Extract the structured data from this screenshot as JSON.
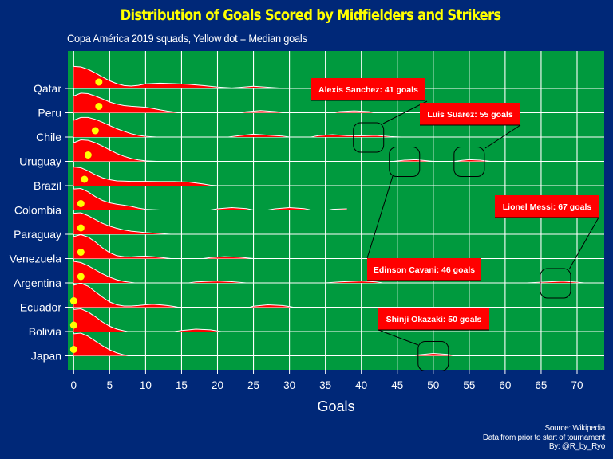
{
  "title": "Distribution of Goals Scored by Midfielders and Strikers",
  "subtitle": "Copa América 2019 squads, Yellow dot = Median goals",
  "caption": [
    "Source: Wikipedia",
    "Data from prior to start of tournament",
    "By: @R_by_Ryo"
  ],
  "colors": {
    "background": "#002878",
    "panel": "#009a3e",
    "grid": "#ffffff",
    "ridge_fill": "#ff0000",
    "ridge_outline": "#ffffff",
    "median_dot": "#ffff00",
    "title": "#ffff00",
    "label_fill": "#ff0000",
    "label_text": "#ffffff",
    "annotation_line": "#000000"
  },
  "chart_data": {
    "type": "ridgeline",
    "title": "Distribution of Goals Scored by Midfielders and Strikers",
    "subtitle": "Copa América 2019 squads, Yellow dot = Median goals",
    "xlabel": "Goals",
    "ylabel": "",
    "xlim": [
      -0.7,
      73.5
    ],
    "x_ticks": [
      0,
      5,
      10,
      15,
      20,
      25,
      30,
      35,
      40,
      45,
      50,
      55,
      60,
      65,
      70
    ],
    "grid": true,
    "legend": "none",
    "categories": [
      "Qatar",
      "Peru",
      "Chile",
      "Uruguay",
      "Brazil",
      "Colombia",
      "Paraguay",
      "Venezuela",
      "Argentina",
      "Ecuador",
      "Bolivia",
      "Japan"
    ],
    "series": [
      {
        "name": "Qatar",
        "median": 3.5,
        "max_extent": 29.5,
        "peak_height": 1.0,
        "density": [
          [
            0,
            0.92
          ],
          [
            1,
            0.9
          ],
          [
            2,
            0.8
          ],
          [
            3,
            0.65
          ],
          [
            4,
            0.48
          ],
          [
            5,
            0.32
          ],
          [
            6,
            0.2
          ],
          [
            7,
            0.12
          ],
          [
            8,
            0.1
          ],
          [
            9,
            0.13
          ],
          [
            10,
            0.19
          ],
          [
            12,
            0.22
          ],
          [
            14,
            0.2
          ],
          [
            16,
            0.17
          ],
          [
            18,
            0.12
          ],
          [
            20,
            0.06
          ],
          [
            22,
            0.02
          ],
          [
            23,
            0.04
          ],
          [
            25,
            0.09
          ],
          [
            27,
            0.05
          ],
          [
            29,
            0.01
          ],
          [
            29.5,
            0
          ]
        ]
      },
      {
        "name": "Peru",
        "median": 3.5,
        "max_extent": 15.0,
        "peak_height": 0.9,
        "density": [
          [
            0,
            0.7
          ],
          [
            1,
            0.82
          ],
          [
            2,
            0.8
          ],
          [
            3,
            0.7
          ],
          [
            4,
            0.58
          ],
          [
            5,
            0.45
          ],
          [
            6,
            0.36
          ],
          [
            7,
            0.3
          ],
          [
            8,
            0.27
          ],
          [
            9,
            0.25
          ],
          [
            10,
            0.23
          ],
          [
            11,
            0.18
          ],
          [
            12,
            0.12
          ],
          [
            13,
            0.07
          ],
          [
            14,
            0.03
          ],
          [
            15,
            0
          ]
        ],
        "secondary": [
          [
            23,
            0
          ],
          [
            24,
            0.04
          ],
          [
            26,
            0.09
          ],
          [
            28,
            0.05
          ],
          [
            29.5,
            0
          ],
          [
            36,
            0
          ],
          [
            37,
            0.05
          ],
          [
            39,
            0.08
          ],
          [
            41,
            0.05
          ],
          [
            42,
            0
          ]
        ]
      },
      {
        "name": "Chile",
        "median": 3.0,
        "max_extent": 11.5,
        "peak_height": 0.9,
        "density": [
          [
            0,
            0.7
          ],
          [
            1,
            0.82
          ],
          [
            2,
            0.82
          ],
          [
            3,
            0.74
          ],
          [
            4,
            0.62
          ],
          [
            5,
            0.48
          ],
          [
            6,
            0.35
          ],
          [
            7,
            0.24
          ],
          [
            8,
            0.14
          ],
          [
            9,
            0.07
          ],
          [
            10,
            0.03
          ],
          [
            11.5,
            0
          ]
        ],
        "secondary": [
          [
            21.5,
            0
          ],
          [
            23,
            0.06
          ],
          [
            25,
            0.12
          ],
          [
            27,
            0.08
          ],
          [
            29,
            0.04
          ],
          [
            30,
            0
          ],
          [
            33,
            0
          ],
          [
            34,
            0.06
          ],
          [
            36,
            0.1
          ],
          [
            38,
            0.06
          ],
          [
            40,
            0.05
          ],
          [
            42,
            0.07
          ],
          [
            44,
            0.02
          ],
          [
            45.5,
            0
          ]
        ]
      },
      {
        "name": "Uruguay",
        "median": 2.0,
        "max_extent": 11.5,
        "peak_height": 0.95,
        "density": [
          [
            0,
            0.78
          ],
          [
            1,
            0.9
          ],
          [
            2,
            0.88
          ],
          [
            3,
            0.78
          ],
          [
            4,
            0.64
          ],
          [
            5,
            0.48
          ],
          [
            6,
            0.33
          ],
          [
            7,
            0.21
          ],
          [
            8,
            0.12
          ],
          [
            9,
            0.06
          ],
          [
            10,
            0.02
          ],
          [
            11.5,
            0
          ]
        ],
        "secondary": [
          [
            44.5,
            0
          ],
          [
            46,
            0.05
          ],
          [
            47.5,
            0.07
          ],
          [
            49,
            0.03
          ],
          [
            50,
            0
          ],
          [
            53,
            0
          ],
          [
            54,
            0.04
          ],
          [
            55,
            0.07
          ],
          [
            56.5,
            0.05
          ],
          [
            58,
            0
          ]
        ]
      },
      {
        "name": "Brazil",
        "median": 1.5,
        "max_extent": 20.0,
        "peak_height": 0.75,
        "density": [
          [
            0,
            0.78
          ],
          [
            1,
            0.75
          ],
          [
            2,
            0.62
          ],
          [
            3,
            0.46
          ],
          [
            4,
            0.33
          ],
          [
            5,
            0.25
          ],
          [
            6,
            0.2
          ],
          [
            7,
            0.19
          ],
          [
            8,
            0.18
          ],
          [
            10,
            0.18
          ],
          [
            12,
            0.17
          ],
          [
            14,
            0.17
          ],
          [
            16,
            0.15
          ],
          [
            18,
            0.07
          ],
          [
            19,
            0.02
          ],
          [
            20,
            0
          ]
        ]
      },
      {
        "name": "Colombia",
        "median": 1.0,
        "max_extent": 12.0,
        "peak_height": 0.95,
        "density": [
          [
            0,
            0.88
          ],
          [
            1,
            0.9
          ],
          [
            2,
            0.76
          ],
          [
            3,
            0.56
          ],
          [
            4,
            0.4
          ],
          [
            5,
            0.3
          ],
          [
            6,
            0.24
          ],
          [
            7,
            0.2
          ],
          [
            8,
            0.15
          ],
          [
            9,
            0.08
          ],
          [
            10,
            0.03
          ],
          [
            12,
            0
          ]
        ],
        "secondary": [
          [
            19,
            0
          ],
          [
            20,
            0.05
          ],
          [
            22,
            0.1
          ],
          [
            24,
            0.06
          ],
          [
            25,
            0
          ],
          [
            27,
            0
          ],
          [
            28,
            0.05
          ],
          [
            30,
            0.1
          ],
          [
            32,
            0.06
          ],
          [
            33,
            0
          ],
          [
            35.5,
            0
          ],
          [
            36,
            0.03
          ],
          [
            38,
            0.05
          ]
        ]
      },
      {
        "name": "Paraguay",
        "median": 1.0,
        "max_extent": 13.5,
        "peak_height": 0.95,
        "density": [
          [
            0,
            0.88
          ],
          [
            1,
            0.9
          ],
          [
            2,
            0.78
          ],
          [
            3,
            0.62
          ],
          [
            4,
            0.46
          ],
          [
            5,
            0.34
          ],
          [
            6,
            0.25
          ],
          [
            7,
            0.18
          ],
          [
            8,
            0.13
          ],
          [
            9,
            0.1
          ],
          [
            10,
            0.07
          ],
          [
            11,
            0.05
          ],
          [
            12,
            0.03
          ],
          [
            13.5,
            0
          ]
        ]
      },
      {
        "name": "Venezuela",
        "median": 1.0,
        "max_extent": 13.5,
        "peak_height": 1.0,
        "density": [
          [
            0,
            0.92
          ],
          [
            1,
            1.0
          ],
          [
            2,
            0.9
          ],
          [
            3,
            0.7
          ],
          [
            4,
            0.45
          ],
          [
            5,
            0.25
          ],
          [
            6,
            0.12
          ],
          [
            7,
            0.08
          ],
          [
            8,
            0.07
          ],
          [
            9,
            0.09
          ],
          [
            10,
            0.1
          ],
          [
            11,
            0.08
          ],
          [
            12,
            0.05
          ],
          [
            13.5,
            0
          ]
        ],
        "secondary": [
          [
            18,
            0
          ],
          [
            19,
            0.04
          ],
          [
            21,
            0.08
          ],
          [
            23,
            0.06
          ],
          [
            24,
            0.03
          ],
          [
            25,
            0
          ]
        ]
      },
      {
        "name": "Argentina",
        "median": 1.0,
        "max_extent": 8.5,
        "peak_height": 0.95,
        "density": [
          [
            0,
            0.9
          ],
          [
            1,
            0.85
          ],
          [
            2,
            0.72
          ],
          [
            3,
            0.55
          ],
          [
            4,
            0.38
          ],
          [
            5,
            0.24
          ],
          [
            6,
            0.13
          ],
          [
            7,
            0.06
          ],
          [
            8.5,
            0
          ]
        ],
        "secondary": [
          [
            16,
            0
          ],
          [
            17,
            0.04
          ],
          [
            20,
            0.08
          ],
          [
            22,
            0.05
          ],
          [
            24,
            0
          ],
          [
            35,
            0
          ],
          [
            37,
            0.04
          ],
          [
            40,
            0.08
          ],
          [
            42,
            0.04
          ],
          [
            43,
            0
          ],
          [
            63,
            0
          ],
          [
            65,
            0.03
          ],
          [
            68,
            0.07
          ],
          [
            70,
            0.03
          ],
          [
            71,
            0
          ]
        ]
      },
      {
        "name": "Ecuador",
        "median": 0,
        "max_extent": 14.5,
        "peak_height": 1.0,
        "density": [
          [
            0,
            0.92
          ],
          [
            1,
            1.0
          ],
          [
            2,
            0.88
          ],
          [
            3,
            0.65
          ],
          [
            4,
            0.42
          ],
          [
            5,
            0.22
          ],
          [
            6,
            0.1
          ],
          [
            7,
            0.05
          ],
          [
            8,
            0.05
          ],
          [
            9,
            0.07
          ],
          [
            10,
            0.1
          ],
          [
            11,
            0.12
          ],
          [
            12,
            0.1
          ],
          [
            13,
            0.07
          ],
          [
            14,
            0.03
          ],
          [
            14.5,
            0
          ]
        ],
        "secondary": [
          [
            24.5,
            0
          ],
          [
            25,
            0.04
          ],
          [
            27,
            0.1
          ],
          [
            29,
            0.07
          ],
          [
            30,
            0.03
          ],
          [
            30.5,
            0
          ]
        ]
      },
      {
        "name": "Bolivia",
        "median": 0,
        "max_extent": 7.5,
        "peak_height": 1.0,
        "density": [
          [
            0,
            0.92
          ],
          [
            1,
            0.95
          ],
          [
            2,
            0.82
          ],
          [
            3,
            0.62
          ],
          [
            4,
            0.4
          ],
          [
            5,
            0.22
          ],
          [
            6,
            0.1
          ],
          [
            7,
            0.03
          ],
          [
            7.5,
            0
          ]
        ],
        "secondary": [
          [
            14,
            0
          ],
          [
            15,
            0.04
          ],
          [
            17,
            0.1
          ],
          [
            19,
            0.07
          ],
          [
            20.5,
            0
          ]
        ]
      },
      {
        "name": "Japan",
        "median": 0,
        "max_extent": 8.0,
        "peak_height": 1.0,
        "density": [
          [
            0,
            0.92
          ],
          [
            1,
            0.95
          ],
          [
            2,
            0.82
          ],
          [
            3,
            0.62
          ],
          [
            4,
            0.42
          ],
          [
            5,
            0.25
          ],
          [
            6,
            0.12
          ],
          [
            7,
            0.04
          ],
          [
            8,
            0
          ]
        ],
        "secondary": [
          [
            47,
            0
          ],
          [
            48,
            0.04
          ],
          [
            50,
            0.1
          ],
          [
            52,
            0.06
          ],
          [
            53,
            0
          ]
        ]
      }
    ],
    "annotations": [
      {
        "label": "Alexis Sanchez: 41 goals",
        "player": "Alexis Sanchez",
        "goals": 41,
        "country": "Chile"
      },
      {
        "label": "Luis Suarez: 55 goals",
        "player": "Luis Suarez",
        "goals": 55,
        "country": "Uruguay"
      },
      {
        "label": "Edinson Cavani: 46 goals",
        "player": "Edinson Cavani",
        "goals": 46,
        "country": "Uruguay"
      },
      {
        "label": "Lionel Messi: 67 goals",
        "player": "Lionel Messi",
        "goals": 67,
        "country": "Argentina"
      },
      {
        "label": "Shinji Okazaki: 50 goals",
        "player": "Shinji Okazaki",
        "goals": 50,
        "country": "Japan"
      }
    ]
  }
}
